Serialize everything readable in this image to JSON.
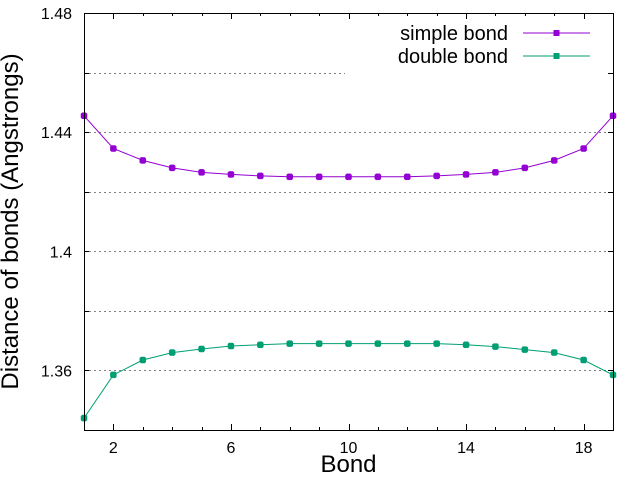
{
  "chart_data": {
    "type": "line",
    "xlabel": "Bond",
    "ylabel": "Distance of bonds (Angstrongs)",
    "xlim": [
      1,
      19
    ],
    "ylim": [
      1.34,
      1.48
    ],
    "x_ticks": [
      2,
      6,
      10,
      14,
      18
    ],
    "y_ticks": [
      1.36,
      1.4,
      1.44,
      1.48
    ],
    "y_tick_labels": [
      "1.36",
      "1.4",
      "1.44",
      "1.48"
    ],
    "grid": "horizontal dotted",
    "legend_position": "top-right",
    "x": [
      1,
      2,
      3,
      4,
      5,
      6,
      7,
      8,
      9,
      10,
      11,
      12,
      13,
      14,
      15,
      16,
      17,
      18,
      19
    ],
    "series": [
      {
        "name": "simple bond",
        "color": "#9400d3",
        "values": [
          1.4455,
          1.4345,
          1.4305,
          1.428,
          1.4265,
          1.4258,
          1.4253,
          1.425,
          1.425,
          1.425,
          1.425,
          1.425,
          1.4253,
          1.4258,
          1.4265,
          1.428,
          1.4305,
          1.4345,
          1.4455
        ]
      },
      {
        "name": "double bond",
        "color": "#009e73",
        "values": [
          1.344,
          1.3585,
          1.3635,
          1.366,
          1.3672,
          1.3682,
          1.3686,
          1.369,
          1.369,
          1.369,
          1.369,
          1.369,
          1.369,
          1.3686,
          1.368,
          1.367,
          1.366,
          1.3635,
          1.3585
        ]
      }
    ]
  }
}
